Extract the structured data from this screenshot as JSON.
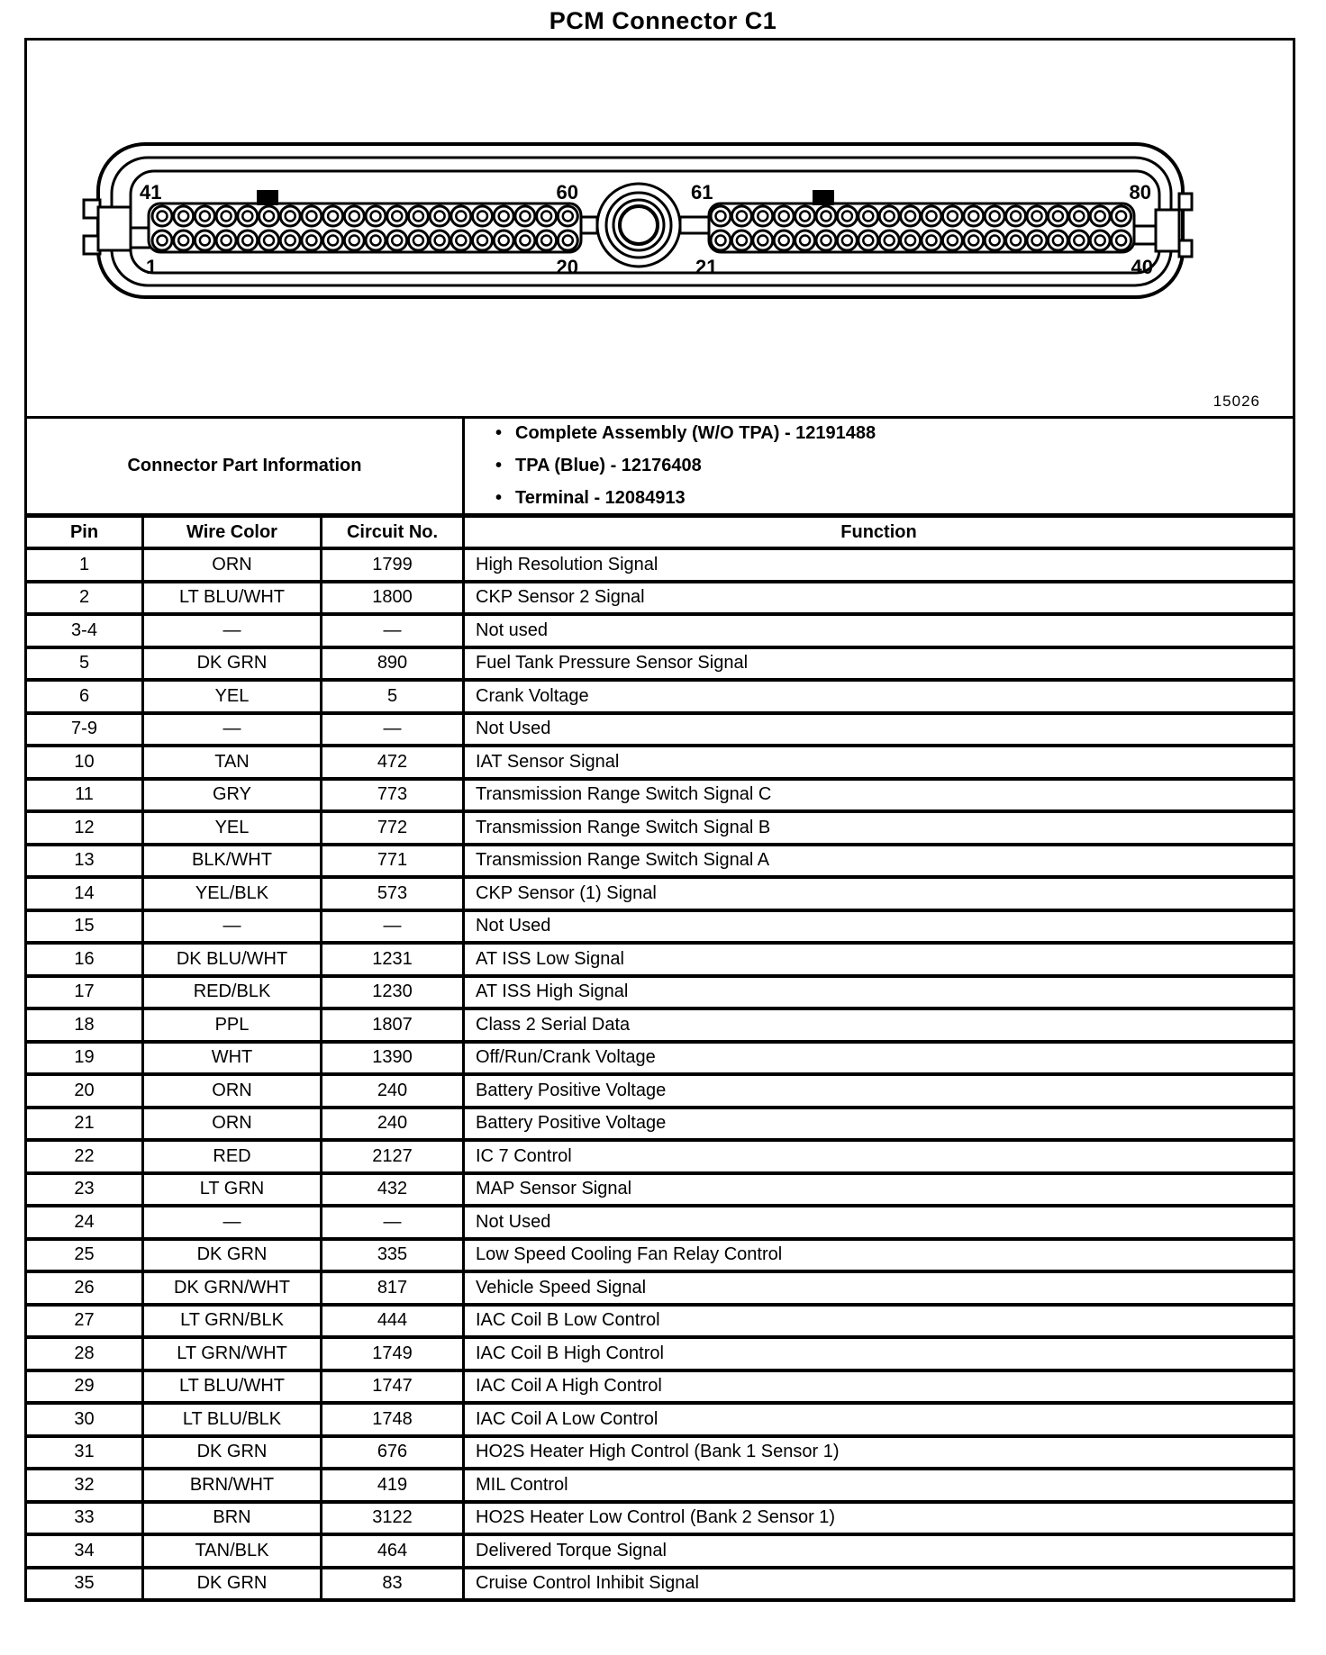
{
  "page_title": "PCM Connector C1",
  "diagram": {
    "figure_number": "15026",
    "connector": {
      "left_block": {
        "top_left": "41",
        "top_right": "60",
        "bottom_left": "1",
        "bottom_right": "20"
      },
      "right_block": {
        "top_left": "61",
        "top_right": "80",
        "bottom_left": "21",
        "bottom_right": "40"
      }
    }
  },
  "part_info": {
    "label": "Connector Part Information",
    "items": [
      "Complete Assembly (W/O TPA) - 12191488",
      "TPA (Blue) - 12176408",
      "Terminal - 12084913"
    ]
  },
  "pin_table": {
    "columns": [
      "Pin",
      "Wire Color",
      "Circuit No.",
      "Function"
    ],
    "rows": [
      [
        "1",
        "ORN",
        "1799",
        "High Resolution Signal"
      ],
      [
        "2",
        "LT BLU/WHT",
        "1800",
        "CKP Sensor 2 Signal"
      ],
      [
        "3-4",
        "—",
        "—",
        "Not used"
      ],
      [
        "5",
        "DK GRN",
        "890",
        "Fuel Tank Pressure Sensor Signal"
      ],
      [
        "6",
        "YEL",
        "5",
        "Crank Voltage"
      ],
      [
        "7-9",
        "—",
        "—",
        "Not Used"
      ],
      [
        "10",
        "TAN",
        "472",
        "IAT Sensor Signal"
      ],
      [
        "11",
        "GRY",
        "773",
        "Transmission Range Switch Signal C"
      ],
      [
        "12",
        "YEL",
        "772",
        "Transmission Range Switch Signal B"
      ],
      [
        "13",
        "BLK/WHT",
        "771",
        "Transmission Range Switch Signal A"
      ],
      [
        "14",
        "YEL/BLK",
        "573",
        "CKP Sensor (1) Signal"
      ],
      [
        "15",
        "—",
        "—",
        "Not Used"
      ],
      [
        "16",
        "DK BLU/WHT",
        "1231",
        "AT ISS Low Signal"
      ],
      [
        "17",
        "RED/BLK",
        "1230",
        "AT ISS High Signal"
      ],
      [
        "18",
        "PPL",
        "1807",
        "Class 2 Serial Data"
      ],
      [
        "19",
        "WHT",
        "1390",
        "Off/Run/Crank Voltage"
      ],
      [
        "20",
        "ORN",
        "240",
        "Battery Positive Voltage"
      ],
      [
        "21",
        "ORN",
        "240",
        "Battery Positive Voltage"
      ],
      [
        "22",
        "RED",
        "2127",
        "IC 7 Control"
      ],
      [
        "23",
        "LT GRN",
        "432",
        "MAP Sensor Signal"
      ],
      [
        "24",
        "—",
        "—",
        "Not Used"
      ],
      [
        "25",
        "DK GRN",
        "335",
        "Low Speed Cooling Fan Relay Control"
      ],
      [
        "26",
        "DK GRN/WHT",
        "817",
        "Vehicle Speed Signal"
      ],
      [
        "27",
        "LT GRN/BLK",
        "444",
        "IAC Coil B Low Control"
      ],
      [
        "28",
        "LT GRN/WHT",
        "1749",
        "IAC Coil B High Control"
      ],
      [
        "29",
        "LT BLU/WHT",
        "1747",
        "IAC Coil A High Control"
      ],
      [
        "30",
        "LT BLU/BLK",
        "1748",
        "IAC Coil A Low Control"
      ],
      [
        "31",
        "DK GRN",
        "676",
        "HO2S Heater High Control (Bank 1 Sensor 1)"
      ],
      [
        "32",
        "BRN/WHT",
        "419",
        "MIL Control"
      ],
      [
        "33",
        "BRN",
        "3122",
        "HO2S Heater Low Control (Bank 2 Sensor 1)"
      ],
      [
        "34",
        "TAN/BLK",
        "464",
        "Delivered Torque Signal"
      ],
      [
        "35",
        "DK GRN",
        "83",
        "Cruise Control Inhibit Signal"
      ]
    ]
  }
}
